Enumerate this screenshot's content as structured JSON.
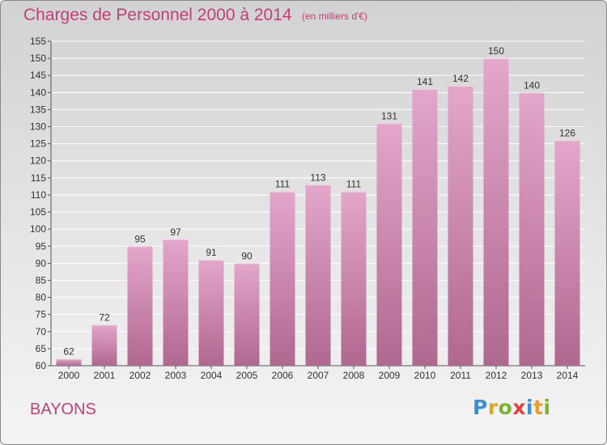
{
  "title": "Charges de Personnel 2000 à 2014",
  "subtitle": "(en milliers d'€)",
  "place": "BAYONS",
  "logo": {
    "text": "Proxiti",
    "letters": [
      {
        "ch": "P",
        "color": "#3a8fd4"
      },
      {
        "ch": "r",
        "color": "#e8a020"
      },
      {
        "ch": "o",
        "color": "#7ab530"
      },
      {
        "ch": "x",
        "color": "#e84040"
      },
      {
        "ch": "i",
        "color": "#3a8fd4"
      },
      {
        "ch": "t",
        "color": "#e8a020"
      },
      {
        "ch": "i",
        "color": "#7ab530"
      }
    ]
  },
  "colors": {
    "accent": "#c0407a",
    "bar_top": "#e4a6cb",
    "bar_bottom": "#b0688f"
  },
  "chart_data": {
    "type": "bar",
    "title": "Charges de Personnel 2000 à 2014",
    "subtitle": "(en milliers d'€)",
    "xlabel": "",
    "ylabel": "",
    "categories": [
      "2000",
      "2001",
      "2002",
      "2003",
      "2004",
      "2005",
      "2006",
      "2007",
      "2008",
      "2009",
      "2010",
      "2011",
      "2012",
      "2013",
      "2014"
    ],
    "values": [
      62,
      72,
      95,
      97,
      91,
      90,
      111,
      113,
      111,
      131,
      141,
      142,
      150,
      140,
      126
    ],
    "ylim": [
      60,
      155
    ],
    "yticks": [
      60,
      65,
      70,
      75,
      80,
      85,
      90,
      95,
      100,
      105,
      110,
      115,
      120,
      125,
      130,
      135,
      140,
      145,
      150,
      155
    ],
    "grid": true,
    "legend": "none"
  }
}
